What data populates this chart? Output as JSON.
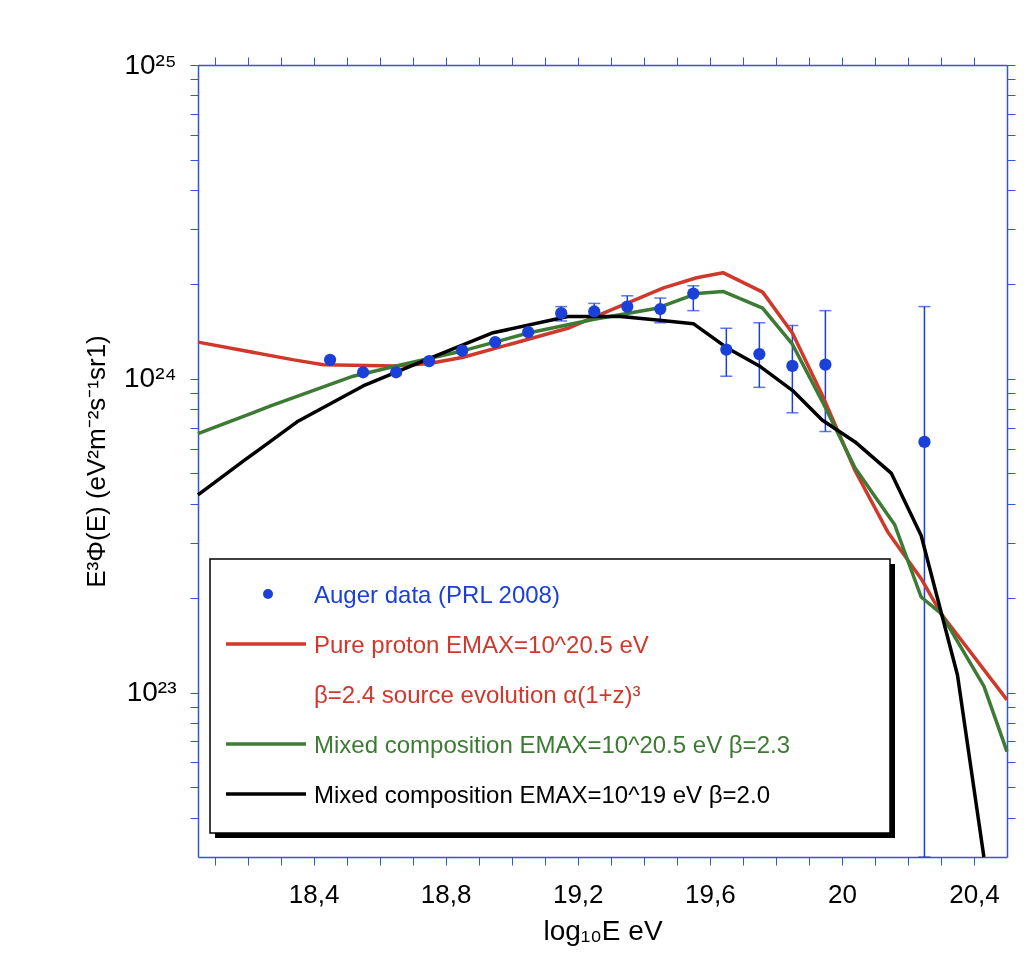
{
  "chart_data": {
    "type": "line",
    "xlabel": "log₁₀E eV",
    "ylabel": "E³Φ(E) (eV²m⁻²s⁻¹sr1)",
    "log": "y",
    "grid": false,
    "legend": "bottom left",
    "xlim": [
      18.05,
      20.5
    ],
    "ylim": [
      3e+22,
      1e+25
    ],
    "xticks": [
      {
        "value": 18.1,
        "label": null
      },
      {
        "value": 18.2,
        "label": null
      },
      {
        "value": 18.3,
        "label": null
      },
      {
        "value": 18.4,
        "label": "18,4"
      },
      {
        "value": 18.5,
        "label": null
      },
      {
        "value": 18.6,
        "label": null
      },
      {
        "value": 18.7,
        "label": null
      },
      {
        "value": 18.8,
        "label": "18,8"
      },
      {
        "value": 18.9,
        "label": null
      },
      {
        "value": 19.0,
        "label": null
      },
      {
        "value": 19.1,
        "label": null
      },
      {
        "value": 19.2,
        "label": "19,2"
      },
      {
        "value": 19.3,
        "label": null
      },
      {
        "value": 19.4,
        "label": null
      },
      {
        "value": 19.5,
        "label": null
      },
      {
        "value": 19.6,
        "label": "19,6"
      },
      {
        "value": 19.7,
        "label": null
      },
      {
        "value": 19.8,
        "label": null
      },
      {
        "value": 19.9,
        "label": null
      },
      20,
      {
        "value": 20.1,
        "label": null
      },
      {
        "value": 20.2,
        "label": null
      },
      {
        "value": 20.3,
        "label": null
      },
      {
        "value": 20.4,
        "label": "20,4"
      }
    ],
    "yticks": [
      {
        "value": 4e+22,
        "label": null
      },
      {
        "value": 5e+22,
        "label": null
      },
      {
        "value": 6e+22,
        "label": null
      },
      {
        "value": 7e+22,
        "label": null
      },
      {
        "value": 8e+22,
        "label": null
      },
      {
        "value": 9e+22,
        "label": null
      },
      {
        "value": 1e+23,
        "label": "10²³"
      },
      {
        "value": 2e+23,
        "label": null
      },
      {
        "value": 3e+23,
        "label": null
      },
      {
        "value": 4e+23,
        "label": null
      },
      {
        "value": 5e+23,
        "label": null
      },
      {
        "value": 6e+23,
        "label": null
      },
      {
        "value": 7e+23,
        "label": null
      },
      {
        "value": 8e+23,
        "label": null
      },
      {
        "value": 9e+23,
        "label": null
      },
      {
        "value": 1e+24,
        "label": "10²⁴"
      },
      {
        "value": 2e+24,
        "label": null
      },
      {
        "value": 3e+24,
        "label": null
      },
      {
        "value": 4e+24,
        "label": null
      },
      {
        "value": 5e+24,
        "label": null
      },
      {
        "value": 6e+24,
        "label": null
      },
      {
        "value": 7e+24,
        "label": null
      },
      {
        "value": 8e+24,
        "label": null
      },
      {
        "value": 9e+24,
        "label": null
      },
      {
        "value": 1e+25,
        "label": "10²⁵"
      }
    ],
    "series": [
      {
        "type": "scatter",
        "marker": "circle",
        "name": "Auger data (PRL 2008)",
        "color": "#1a40d8",
        "x": [
          18.45,
          18.55,
          18.65,
          18.75,
          18.85,
          18.95,
          19.05,
          19.15,
          19.25,
          19.35,
          19.45,
          19.55,
          19.65,
          19.75,
          19.85,
          19.95,
          20.25
        ],
        "values": [
          1.15e+24,
          1.05e+24,
          1.05e+24,
          1.14e+24,
          1.23e+24,
          1.31e+24,
          1.41e+24,
          1.62e+24,
          1.64e+24,
          1.7e+24,
          1.67e+24,
          1.87e+24,
          1.24e+24,
          1.2e+24,
          1.1e+24,
          1.11e+24,
          6.3e+23
        ],
        "errors": [
          null,
          null,
          null,
          null,
          null,
          null,
          null,
          [
            1.53e+24,
            1.7e+24
          ],
          [
            1.55e+24,
            1.74e+24
          ],
          [
            1.58e+24,
            1.84e+24
          ],
          [
            1.51e+24,
            1.81e+24
          ],
          [
            1.65e+24,
            1.98e+24
          ],
          [
            1.02e+24,
            1.45e+24
          ],
          [
            9.4e+23,
            1.51e+24
          ],
          [
            7.8e+23,
            1.48e+24
          ],
          [
            6.8e+23,
            1.65e+24
          ],
          [
            3e+22,
            1.7e+24
          ]
        ]
      },
      {
        "type": "line",
        "name": "Pure proton EMAX=10^20.5 eV\nβ=2.4 source evolution α(1+z)³",
        "color": "#d0382c",
        "x": [
          18.05,
          18.34,
          18.43,
          18.65,
          18.75,
          18.85,
          19.17,
          19.26,
          19.46,
          19.56,
          19.64,
          19.76,
          19.85,
          19.94,
          20.04,
          20.14,
          20.24,
          20.3,
          20.5
        ],
        "values": [
          1.31e+24,
          1.15e+24,
          1.11e+24,
          1.1e+24,
          1.12e+24,
          1.17e+24,
          1.45e+24,
          1.59e+24,
          1.95e+24,
          2.1e+24,
          2.18e+24,
          1.89e+24,
          1.4e+24,
          8.9e+23,
          5.1e+23,
          3.24e+23,
          2.31e+23,
          1.79e+23,
          9.5e+22
        ]
      },
      {
        "type": "line",
        "name": "Mixed composition EMAX=10^20.5 eV β=2.3",
        "color": "#3d7a33",
        "x": [
          18.05,
          18.27,
          18.52,
          18.65,
          18.84,
          19.05,
          19.25,
          19.44,
          19.56,
          19.64,
          19.76,
          19.85,
          19.94,
          20.04,
          20.16,
          20.24,
          20.3,
          20.43,
          20.5
        ],
        "values": [
          6.7e+23,
          8.2e+23,
          1.02e+24,
          1.1e+24,
          1.22e+24,
          1.4e+24,
          1.55e+24,
          1.68e+24,
          1.87e+24,
          1.9e+24,
          1.68e+24,
          1.29e+24,
          8.5e+23,
          5.2e+23,
          3.43e+23,
          2.02e+23,
          1.79e+23,
          1.05e+23,
          6.5e+22
        ]
      },
      {
        "type": "line",
        "name": "Mixed composition EMAX=10^19 eV β=2.0",
        "color": "#000000",
        "x": [
          18.05,
          18.19,
          18.35,
          18.55,
          18.74,
          18.94,
          19.17,
          19.33,
          19.44,
          19.55,
          19.65,
          19.75,
          19.85,
          19.94,
          20.04,
          20.15,
          20.24,
          20.35,
          20.43
        ],
        "values": [
          4.27e+23,
          5.5e+23,
          7.3e+23,
          9.5e+23,
          1.15e+24,
          1.4e+24,
          1.58e+24,
          1.58e+24,
          1.54e+24,
          1.5e+24,
          1.26e+24,
          1.1e+24,
          9.2e+23,
          7.4e+23,
          6.3e+23,
          5e+23,
          3.17e+23,
          1.14e+23,
          3e+22
        ]
      }
    ]
  }
}
